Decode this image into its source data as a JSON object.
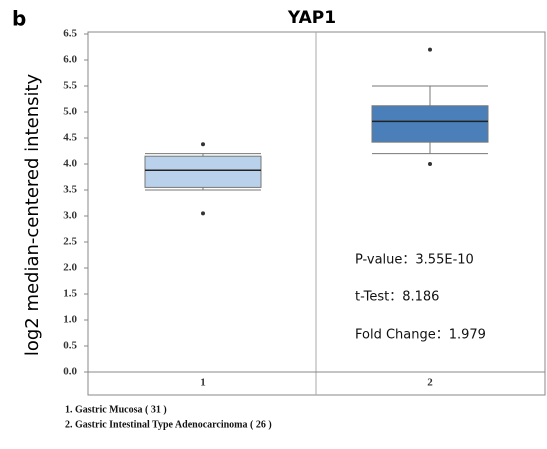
{
  "chart_data": {
    "type": "box",
    "panel_label": "b",
    "title": "YAP1",
    "ylabel": "log2 median-centered intensity",
    "categories": [
      "1",
      "2"
    ],
    "colors": [
      "#b9d1ea",
      "#4a7fb9"
    ],
    "boxes": [
      {
        "whisker_low": 3.5,
        "q1": 3.55,
        "median": 3.88,
        "q3": 4.15,
        "whisker_high": 4.2,
        "outliers": [
          4.38,
          3.05
        ]
      },
      {
        "whisker_low": 4.2,
        "q1": 4.42,
        "median": 4.82,
        "q3": 5.12,
        "whisker_high": 5.5,
        "outliers": [
          6.2,
          4.0
        ]
      }
    ],
    "ylim": [
      0,
      6.5
    ],
    "yticks": [
      {
        "value": 0,
        "label": "0.0"
      },
      0.5,
      {
        "value": 1,
        "label": "1.0"
      },
      1.5,
      {
        "value": 2,
        "label": "2.0"
      },
      2.5,
      {
        "value": 3,
        "label": "3.0"
      },
      3.5,
      {
        "value": 4,
        "label": "4.0"
      },
      4.5,
      {
        "value": 5,
        "label": "5.0"
      },
      5.5,
      {
        "value": 6,
        "label": "6.0"
      },
      6.5
    ],
    "annotations": [
      "P-value：3.55E-10",
      "t-Test：8.186",
      "Fold Change：1.979"
    ],
    "notes": [
      "1. Gastric Mucosa ( 31 )",
      "2. Gastric Intestinal Type Adenocarcinoma ( 26 )"
    ]
  }
}
